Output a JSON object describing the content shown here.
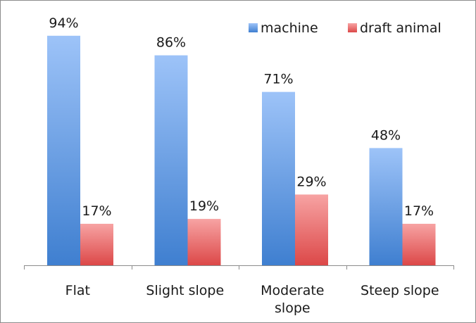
{
  "chart_data": {
    "type": "bar",
    "title": "",
    "xlabel": "",
    "ylabel": "",
    "ylim": [
      0,
      100
    ],
    "grid": false,
    "legend_position": "top-right",
    "categories": [
      [
        "Flat"
      ],
      [
        "Slight slope"
      ],
      [
        "Moderate",
        "slope"
      ],
      [
        "Steep slope"
      ]
    ],
    "series": [
      {
        "name": "machine",
        "values": [
          94,
          86,
          71,
          48
        ],
        "labels": [
          "94%",
          "86%",
          "71%",
          "48%"
        ],
        "color_top": "#9dc3f8",
        "color_bottom": "#3f7fd0"
      },
      {
        "name": "draft animal",
        "values": [
          17,
          19,
          29,
          17
        ],
        "labels": [
          "17%",
          "19%",
          "29%",
          "17%"
        ],
        "color_top": "#f7a3a3",
        "color_bottom": "#dc4848"
      }
    ]
  }
}
